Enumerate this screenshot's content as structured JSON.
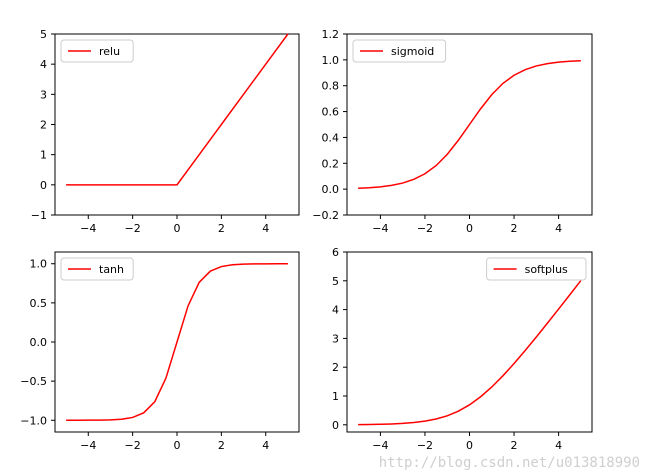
{
  "chart_data": [
    {
      "type": "line",
      "legend": "upper-left",
      "xlim": [
        -5.5,
        5.5
      ],
      "ylim": [
        -1,
        5
      ],
      "xticks": [
        -4,
        -2,
        0,
        2,
        4
      ],
      "yticks": [
        -1,
        0,
        1,
        2,
        3,
        4,
        5
      ],
      "xtick_labels": [
        "−4",
        "−2",
        "0",
        "2",
        "4"
      ],
      "ytick_labels": [
        "−1",
        "0",
        "1",
        "2",
        "3",
        "4",
        "5"
      ],
      "series": [
        {
          "name": "relu",
          "color": "#ff0000",
          "x": [
            -5,
            -4,
            -3,
            -2,
            -1,
            0,
            1,
            2,
            3,
            4,
            5
          ],
          "y": [
            0,
            0,
            0,
            0,
            0,
            0,
            1,
            2,
            3,
            4,
            5
          ]
        }
      ]
    },
    {
      "type": "line",
      "legend": "upper-left",
      "xlim": [
        -5.5,
        5.5
      ],
      "ylim": [
        -0.2,
        1.2
      ],
      "xticks": [
        -4,
        -2,
        0,
        2,
        4
      ],
      "yticks": [
        -0.2,
        0.0,
        0.2,
        0.4,
        0.6,
        0.8,
        1.0,
        1.2
      ],
      "xtick_labels": [
        "−4",
        "−2",
        "0",
        "2",
        "4"
      ],
      "ytick_labels": [
        "−0.2",
        "0.0",
        "0.2",
        "0.4",
        "0.6",
        "0.8",
        "1.0",
        "1.2"
      ],
      "series": [
        {
          "name": "sigmoid",
          "color": "#ff0000",
          "x": [
            -5,
            -4.5,
            -4,
            -3.5,
            -3,
            -2.5,
            -2,
            -1.5,
            -1,
            -0.5,
            0,
            0.5,
            1,
            1.5,
            2,
            2.5,
            3,
            3.5,
            4,
            4.5,
            5
          ],
          "y": [
            0.007,
            0.011,
            0.018,
            0.029,
            0.047,
            0.076,
            0.119,
            0.182,
            0.269,
            0.378,
            0.5,
            0.622,
            0.731,
            0.818,
            0.881,
            0.924,
            0.953,
            0.971,
            0.982,
            0.989,
            0.993
          ]
        }
      ]
    },
    {
      "type": "line",
      "legend": "upper-left",
      "xlim": [
        -5.5,
        5.5
      ],
      "ylim": [
        -1.15,
        1.15
      ],
      "xticks": [
        -4,
        -2,
        0,
        2,
        4
      ],
      "yticks": [
        -1.0,
        -0.5,
        0.0,
        0.5,
        1.0
      ],
      "xtick_labels": [
        "−4",
        "−2",
        "0",
        "2",
        "4"
      ],
      "ytick_labels": [
        "−1.0",
        "−0.5",
        "0.0",
        "0.5",
        "1.0"
      ],
      "series": [
        {
          "name": "tanh",
          "color": "#ff0000",
          "x": [
            -5,
            -4.5,
            -4,
            -3.5,
            -3,
            -2.5,
            -2,
            -1.5,
            -1,
            -0.5,
            0,
            0.5,
            1,
            1.5,
            2,
            2.5,
            3,
            3.5,
            4,
            4.5,
            5
          ],
          "y": [
            -1.0,
            -1.0,
            -0.999,
            -0.998,
            -0.995,
            -0.987,
            -0.964,
            -0.905,
            -0.762,
            -0.462,
            0,
            0.462,
            0.762,
            0.905,
            0.964,
            0.987,
            0.995,
            0.998,
            0.999,
            1.0,
            1.0
          ]
        }
      ]
    },
    {
      "type": "line",
      "legend": "upper-right",
      "xlim": [
        -5.5,
        5.5
      ],
      "ylim": [
        -0.25,
        6
      ],
      "xticks": [
        -4,
        -2,
        0,
        2,
        4
      ],
      "yticks": [
        0,
        1,
        2,
        3,
        4,
        5,
        6
      ],
      "xtick_labels": [
        "−4",
        "−2",
        "0",
        "2",
        "4"
      ],
      "ytick_labels": [
        "0",
        "1",
        "2",
        "3",
        "4",
        "5",
        "6"
      ],
      "series": [
        {
          "name": "softplus",
          "color": "#ff0000",
          "x": [
            -5,
            -4.5,
            -4,
            -3.5,
            -3,
            -2.5,
            -2,
            -1.5,
            -1,
            -0.5,
            0,
            0.5,
            1,
            1.5,
            2,
            2.5,
            3,
            3.5,
            4,
            4.5,
            5
          ],
          "y": [
            0.007,
            0.011,
            0.018,
            0.03,
            0.049,
            0.079,
            0.127,
            0.201,
            0.313,
            0.474,
            0.693,
            0.974,
            1.313,
            1.701,
            2.127,
            2.579,
            3.049,
            3.53,
            4.018,
            4.511,
            5.007
          ]
        }
      ]
    }
  ],
  "watermark": "http://blog.csdn.net/u013818990"
}
